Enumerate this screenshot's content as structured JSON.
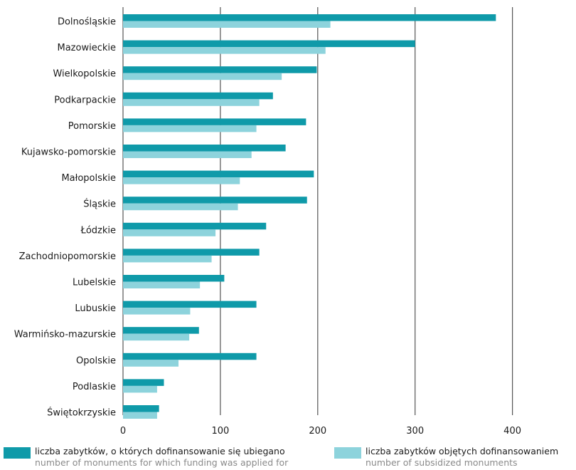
{
  "chart_data": {
    "type": "bar",
    "orientation": "horizontal",
    "categories": [
      "Dolnośląskie",
      "Mazowieckie",
      "Wielkopolskie",
      "Podkarpackie",
      "Pomorskie",
      "Kujawsko-pomorskie",
      "Małopolskie",
      "Śląskie",
      "Łódzkie",
      "Zachodniopomorskie",
      "Lubelskie",
      "Lubuskie",
      "Warmińsko-mazurskie",
      "Opolskie",
      "Podlaskie",
      "Świętokrzyskie"
    ],
    "series": [
      {
        "name": "liczba zabytków, o których dofinansowanie się ubiegano",
        "name_en": "number of monuments for which funding was applied for",
        "color": "#0f9aa9",
        "values": [
          383,
          300,
          199,
          154,
          188,
          167,
          196,
          189,
          147,
          140,
          104,
          137,
          78,
          137,
          42,
          37
        ]
      },
      {
        "name": "liczba zabytków objętych dofinansowaniem",
        "name_en": "number of subsidized monuments",
        "color": "#8dd3dc",
        "values": [
          213,
          208,
          163,
          140,
          137,
          132,
          120,
          118,
          95,
          91,
          79,
          69,
          68,
          57,
          35,
          35
        ]
      }
    ],
    "xticks": [
      0,
      100,
      200,
      300,
      400
    ],
    "xlim": [
      0,
      430
    ],
    "grid": "vertical"
  },
  "legend": {
    "items": [
      {
        "label_pl": "liczba zabytków, o których dofinansowanie się ubiegano",
        "label_en": "number of monuments for which funding was applied for",
        "color": "#0f9aa9"
      },
      {
        "label_pl": "liczba zabytków objętych dofinansowaniem",
        "label_en": "number of subsidized monuments",
        "color": "#8dd3dc"
      }
    ]
  }
}
